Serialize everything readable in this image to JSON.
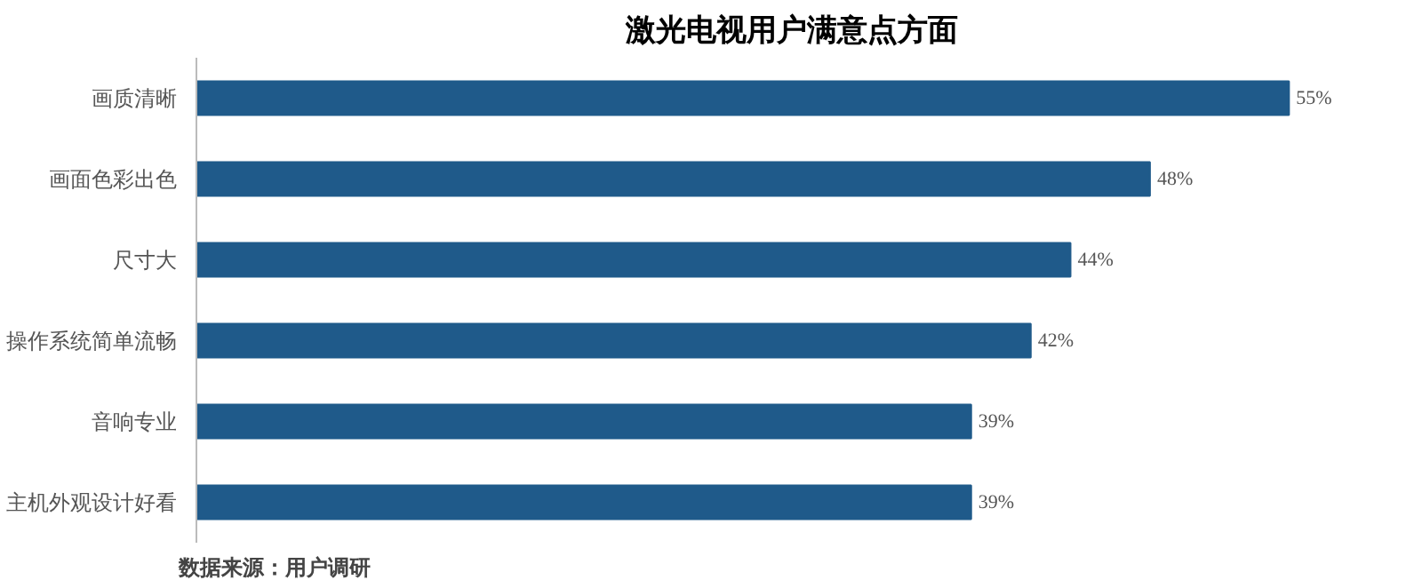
{
  "chart_data": {
    "type": "bar",
    "orientation": "horizontal",
    "title": "激光电视用户满意点方面",
    "categories": [
      "画质清晰",
      "画面色彩出色",
      "尺寸大",
      "操作系统简单流畅",
      "音响专业",
      "主机外观设计好看"
    ],
    "values": [
      55,
      48,
      44,
      42,
      39,
      39
    ],
    "value_labels": [
      "55%",
      "48%",
      "44%",
      "42%",
      "39%",
      "39%"
    ],
    "color": "#1f5a8a",
    "grid": false,
    "tick_labels": "y",
    "annotations": [
      "数据来源：用户调研"
    ]
  }
}
